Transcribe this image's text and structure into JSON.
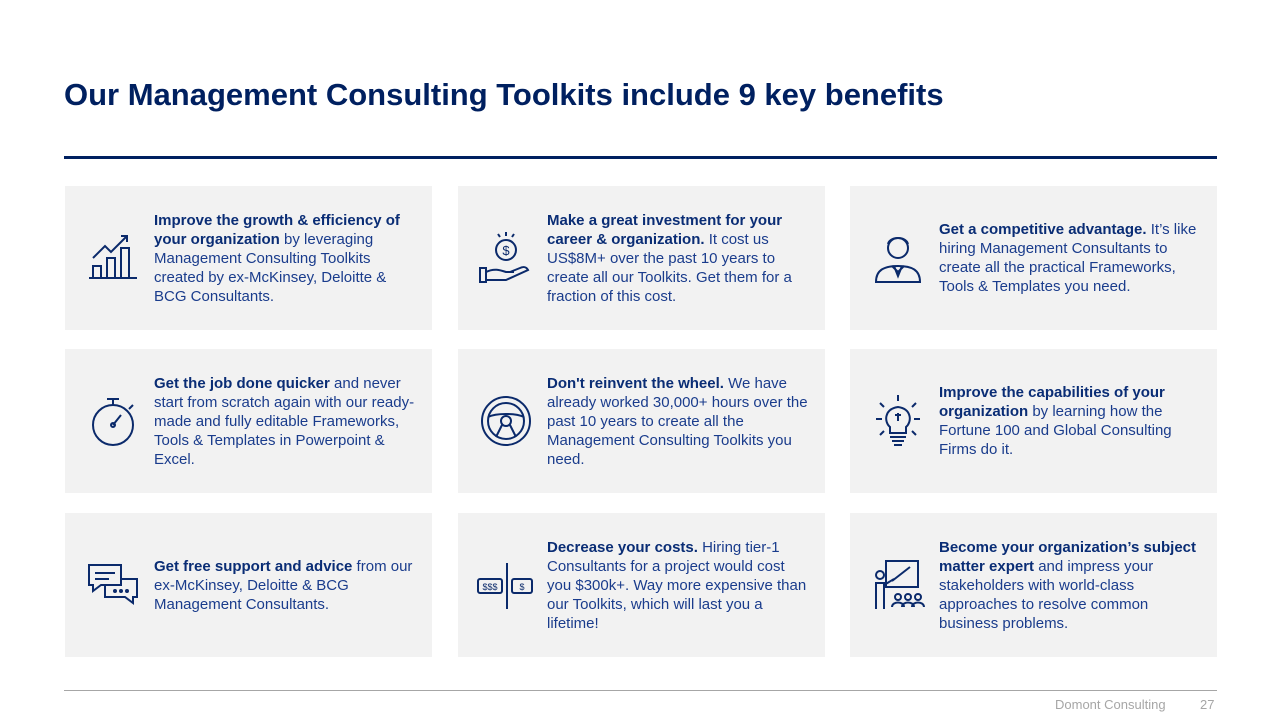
{
  "title": "Our Management Consulting Toolkits include 9 key benefits",
  "benefits": [
    {
      "icon": "growth-chart-icon",
      "bold": "Improve the growth & efficiency of your organization",
      "rest": " by leveraging Management Consulting Toolkits created by ex-McKinsey, Deloitte & BCG Consultants."
    },
    {
      "icon": "money-hand-icon",
      "bold": "Make a great investment for your career & organization.",
      "rest": " It cost us US$8M+ over the past 10 years to create all our Toolkits. Get them for a fraction of this cost."
    },
    {
      "icon": "consultant-icon",
      "bold": "Get a competitive advantage.",
      "rest": " It’s like hiring Management Consultants to create all the practical Frameworks, Tools & Templates you need."
    },
    {
      "icon": "stopwatch-icon",
      "bold": "Get the job done quicker",
      "rest": " and never start from scratch again with our ready-made and fully editable Frameworks, Tools & Templates in Powerpoint & Excel."
    },
    {
      "icon": "steering-wheel-icon",
      "bold": "Don't reinvent the wheel.",
      "rest": " We have already worked 30,000+ hours over the past 10 years to create all the Management Consulting Toolkits you need."
    },
    {
      "icon": "lightbulb-icon",
      "bold": "Improve the capabilities of your organization",
      "rest": " by learning how the Fortune 100 and Global Consulting Firms do it."
    },
    {
      "icon": "chat-bubbles-icon",
      "bold": "Get free support and advice",
      "rest": " from our ex-McKinsey, Deloitte & BCG Management Consultants."
    },
    {
      "icon": "cost-compare-icon",
      "bold": "Decrease your costs.",
      "rest": " Hiring tier-1 Consultants for a project would cost you $300k+. Way more expensive than our Toolkits, which will last you a lifetime!"
    },
    {
      "icon": "presenter-icon",
      "bold": "Become your organization’s subject matter expert",
      "rest": " and impress your stakeholders with world-class approaches to resolve common business problems."
    }
  ],
  "footer": {
    "company": "Domont Consulting",
    "page": "27"
  },
  "colors": {
    "primary": "#002060",
    "card": "#f2f2f2"
  }
}
